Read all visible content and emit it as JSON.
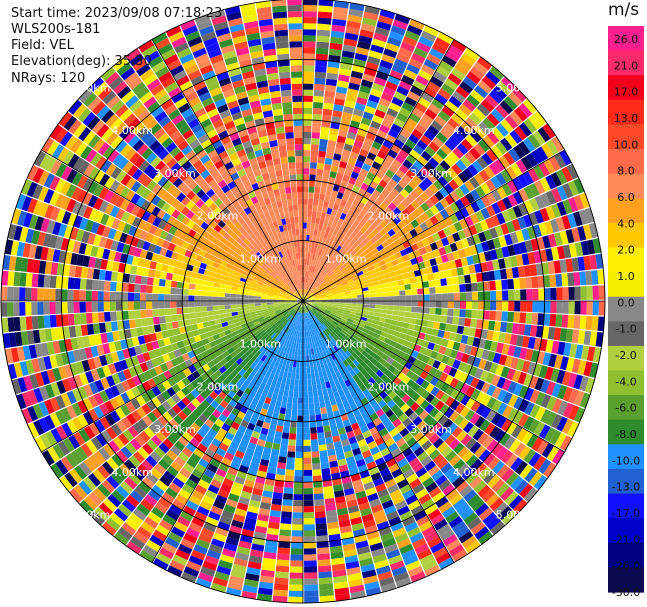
{
  "header": {
    "start_time": "Start time: 2023/09/08 07:18:23",
    "instrument": "WLS200s-181",
    "field": "Field: VEL",
    "elevation": "Elevation(deg): 35.30",
    "nrays": "NRays: 120"
  },
  "colorbar": {
    "unit": "m/s",
    "ticks": [
      "26.0",
      "21.0",
      "17.0",
      "13.0",
      "10.0",
      "8.0",
      "6.0",
      "4.0",
      "2.0",
      "1.0",
      "0.0",
      "-1.0",
      "-2.0",
      "-4.0",
      "-6.0",
      "-8.0",
      "-10.0",
      "-13.0",
      "-17.0",
      "-21.0",
      "-26.0",
      "-30.0"
    ],
    "colors": [
      "#ff1f8f",
      "#ff2a6a",
      "#f2001a",
      "#ff2a1a",
      "#ff4a2a",
      "#ff6a4a",
      "#ff8a5a",
      "#ffa020",
      "#ffc800",
      "#fff000",
      "#f4f000",
      "#888888",
      "#666666",
      "#b0d040",
      "#90c030",
      "#5aa030",
      "#2e8b2e",
      "#1e90ff",
      "#2060d0",
      "#1010ff",
      "#0000c8",
      "#000080",
      "#0a0a50"
    ]
  },
  "chart_data": {
    "type": "heatmap",
    "projection": "polar PPI",
    "field": "VEL",
    "units": "m/s",
    "nrays": 120,
    "elevation_deg": 35.3,
    "range_rings_km": [
      1.0,
      2.0,
      3.0,
      4.0,
      5.0
    ],
    "ring_labels": [
      "1.00km",
      "2.00km",
      "3.00km",
      "4.00km",
      "5.00km"
    ],
    "max_range_km": 5.0,
    "gate_km": 0.1,
    "pattern": {
      "north_sector_ms": 10,
      "south_sector_ms": -10,
      "clean_signal_limit_km": 1.7,
      "noise_onset_km": 3.2
    },
    "colorbar_range": [
      -30.0,
      26.0
    ]
  }
}
